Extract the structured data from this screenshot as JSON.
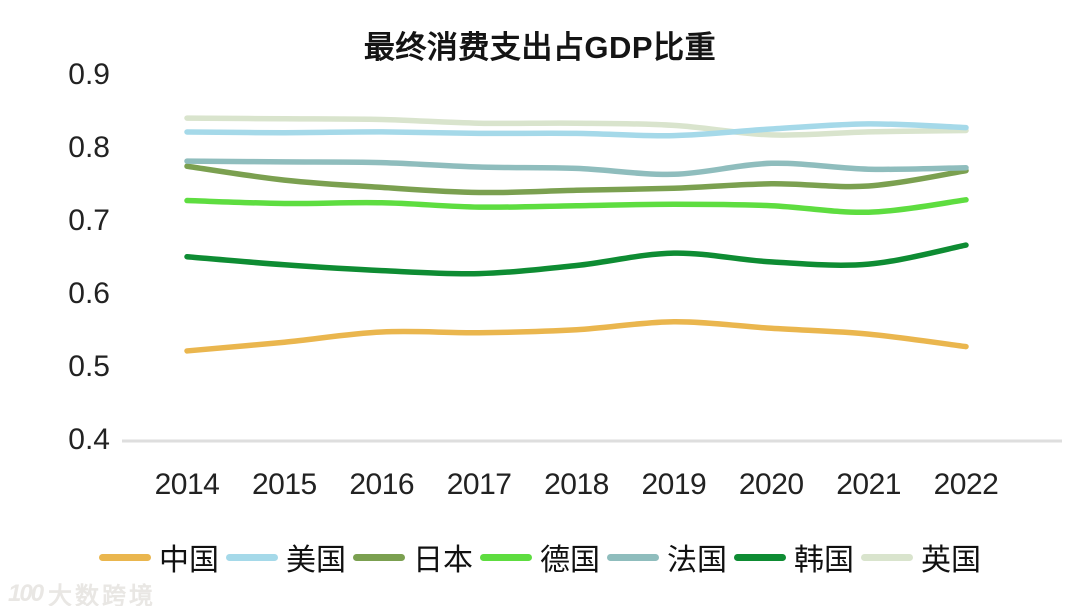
{
  "watermark": {
    "logo": "100",
    "text": "大数跨境"
  },
  "chart_data": {
    "type": "line",
    "title": "最终消费支出占GDP比重",
    "xlabel": "",
    "ylabel": "",
    "x_labels": [
      "2014",
      "2015",
      "2016",
      "2017",
      "2018",
      "2019",
      "2020",
      "2021",
      "2022"
    ],
    "y_tick_labels": [
      "0.9",
      "0.8",
      "0.7",
      "0.6",
      "0.5",
      "0.4"
    ],
    "y_tick_values": [
      0.9,
      0.8,
      0.7,
      0.6,
      0.5,
      0.4
    ],
    "ylim": [
      0.4,
      0.9
    ],
    "grid": "single light baseline at 0.4",
    "legend_position": "bottom",
    "axis_line_color": "#dedede",
    "series": [
      {
        "name": "中国",
        "color": "#EAB64E",
        "values": [
          0.522,
          0.534,
          0.548,
          0.547,
          0.551,
          0.562,
          0.553,
          0.545,
          0.528
        ]
      },
      {
        "name": "美国",
        "color": "#A5D9E9",
        "values": [
          0.822,
          0.821,
          0.822,
          0.82,
          0.82,
          0.817,
          0.826,
          0.833,
          0.828
        ]
      },
      {
        "name": "日本",
        "color": "#7BA050",
        "values": [
          0.775,
          0.756,
          0.746,
          0.739,
          0.742,
          0.745,
          0.751,
          0.748,
          0.769
        ]
      },
      {
        "name": "德国",
        "color": "#5EDD40",
        "values": [
          0.728,
          0.724,
          0.725,
          0.719,
          0.721,
          0.723,
          0.721,
          0.712,
          0.729
        ]
      },
      {
        "name": "法国",
        "color": "#8FBDBD",
        "values": [
          0.782,
          0.781,
          0.78,
          0.774,
          0.772,
          0.764,
          0.779,
          0.771,
          0.773
        ]
      },
      {
        "name": "韩国",
        "color": "#0E8C33",
        "values": [
          0.651,
          0.64,
          0.632,
          0.628,
          0.639,
          0.656,
          0.644,
          0.641,
          0.667
        ]
      },
      {
        "name": "英国",
        "color": "#D9E4CD",
        "values": [
          0.841,
          0.84,
          0.839,
          0.834,
          0.834,
          0.831,
          0.818,
          0.822,
          0.824
        ]
      }
    ]
  }
}
